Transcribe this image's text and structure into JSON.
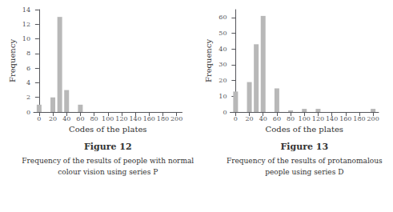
{
  "chart_data": [
    {
      "type": "bar",
      "title": "Figure 12",
      "annotations": [
        "Frequency of the results of people with normal",
        "colour vision using series P"
      ],
      "xlabel": "Codes of the plates",
      "ylabel": "Frequency",
      "x": [
        0,
        20,
        30,
        40,
        60
      ],
      "values": [
        1,
        2,
        13,
        3,
        1
      ],
      "color": "#b8b8b8",
      "xlim": [
        -8,
        208
      ],
      "xticks": [
        0,
        20,
        40,
        60,
        80,
        100,
        120,
        140,
        160,
        180,
        200
      ],
      "ylim": [
        0,
        14
      ],
      "yticks": [
        0,
        2,
        4,
        6,
        8,
        10,
        12,
        14
      ],
      "grid": false
    },
    {
      "type": "bar",
      "title": "Figure 13",
      "annotations": [
        "Frequency of the results of protanomalous",
        "people using series D"
      ],
      "xlabel": "Codes of the plates",
      "ylabel": "Frequency",
      "x": [
        0,
        20,
        30,
        40,
        60,
        80,
        100,
        120,
        200
      ],
      "values": [
        13,
        19,
        43,
        61,
        15,
        1,
        2,
        2,
        2
      ],
      "color": "#b8b8b8",
      "xlim": [
        -8,
        208
      ],
      "xticks": [
        0,
        20,
        40,
        60,
        80,
        100,
        120,
        140,
        160,
        180,
        200
      ],
      "ylim": [
        0,
        65
      ],
      "yticks": [
        0,
        10,
        20,
        30,
        40,
        50,
        60
      ],
      "grid": false
    }
  ]
}
